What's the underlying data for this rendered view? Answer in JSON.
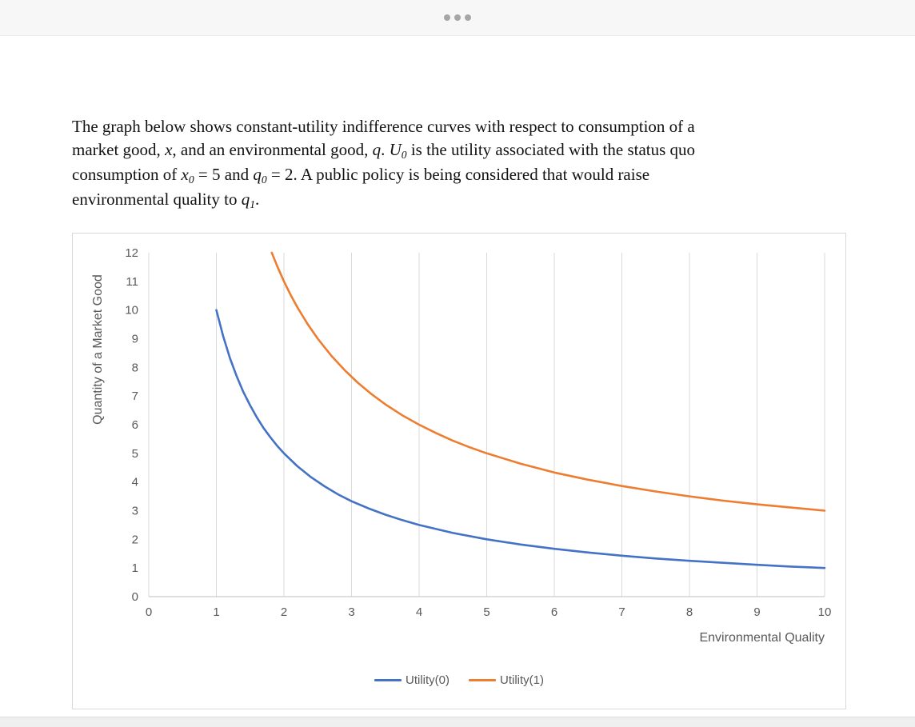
{
  "paragraph": {
    "segments": [
      {
        "t": "The graph below shows constant-utility indifference curves with respect to consumption of a",
        "st": "n"
      },
      {
        "br": true
      },
      {
        "t": "market good, ",
        "st": "n"
      },
      {
        "t": "x",
        "st": "i"
      },
      {
        "t": ", and an environmental good, ",
        "st": "n"
      },
      {
        "t": "q",
        "st": "i"
      },
      {
        "t": ". ",
        "st": "n"
      },
      {
        "t": "U",
        "st": "i"
      },
      {
        "t": "0",
        "st": "s"
      },
      {
        "t": " is the utility associated with the status quo",
        "st": "n"
      },
      {
        "br": true
      },
      {
        "t": "consumption of ",
        "st": "n"
      },
      {
        "t": "x",
        "st": "i"
      },
      {
        "t": "0",
        "st": "s"
      },
      {
        "t": " = 5 and ",
        "st": "n"
      },
      {
        "t": "q",
        "st": "i"
      },
      {
        "t": "0",
        "st": "s"
      },
      {
        "t": " = 2. A public policy is being considered that would raise",
        "st": "n"
      },
      {
        "br": true
      },
      {
        "t": "environmental quality to ",
        "st": "n"
      },
      {
        "t": "q",
        "st": "i"
      },
      {
        "t": "1",
        "st": "s"
      },
      {
        "t": ".",
        "st": "n"
      }
    ]
  },
  "chart_data": {
    "type": "line",
    "title": "",
    "xlabel": "Environmental Quality",
    "ylabel": "Quantity of a Market Good",
    "xlim": [
      0,
      10
    ],
    "ylim": [
      0,
      12
    ],
    "x_ticks": [
      0,
      1,
      2,
      3,
      4,
      5,
      6,
      7,
      8,
      9,
      10
    ],
    "y_ticks": [
      0,
      1,
      2,
      3,
      4,
      5,
      6,
      7,
      8,
      9,
      10,
      11,
      12
    ],
    "grid": "vertical-only",
    "grid_color": "#d9d9d9",
    "axis_color": "#bfbfbf",
    "tick_color": "#595959",
    "legend_position": "bottom",
    "series": [
      {
        "name": "Utility(0)",
        "color": "#4472c4",
        "points": [
          [
            1,
            10
          ],
          [
            1.1,
            9.09
          ],
          [
            1.2,
            8.33
          ],
          [
            1.3,
            7.69
          ],
          [
            1.4,
            7.14
          ],
          [
            1.5,
            6.67
          ],
          [
            1.6,
            6.25
          ],
          [
            1.7,
            5.88
          ],
          [
            1.8,
            5.56
          ],
          [
            1.9,
            5.26
          ],
          [
            2,
            5
          ],
          [
            2.2,
            4.55
          ],
          [
            2.4,
            4.17
          ],
          [
            2.6,
            3.85
          ],
          [
            2.8,
            3.57
          ],
          [
            3,
            3.33
          ],
          [
            3.25,
            3.08
          ],
          [
            3.5,
            2.86
          ],
          [
            3.75,
            2.67
          ],
          [
            4,
            2.5
          ],
          [
            4.5,
            2.22
          ],
          [
            5,
            2
          ],
          [
            5.5,
            1.82
          ],
          [
            6,
            1.67
          ],
          [
            6.5,
            1.54
          ],
          [
            7,
            1.43
          ],
          [
            7.5,
            1.33
          ],
          [
            8,
            1.25
          ],
          [
            8.5,
            1.18
          ],
          [
            9,
            1.11
          ],
          [
            9.5,
            1.05
          ],
          [
            10,
            1
          ]
        ]
      },
      {
        "name": "Utility(1)",
        "color": "#ed7d31",
        "points": [
          [
            1.82,
            12
          ],
          [
            1.9,
            11.53
          ],
          [
            2,
            11
          ],
          [
            2.1,
            10.52
          ],
          [
            2.2,
            10.09
          ],
          [
            2.35,
            9.51
          ],
          [
            2.5,
            9
          ],
          [
            2.7,
            8.41
          ],
          [
            2.9,
            7.9
          ],
          [
            3.1,
            7.45
          ],
          [
            3.3,
            7.06
          ],
          [
            3.5,
            6.71
          ],
          [
            3.75,
            6.33
          ],
          [
            4,
            6
          ],
          [
            4.25,
            5.71
          ],
          [
            4.5,
            5.44
          ],
          [
            4.75,
            5.21
          ],
          [
            5,
            5
          ],
          [
            5.5,
            4.64
          ],
          [
            6,
            4.33
          ],
          [
            6.5,
            4.08
          ],
          [
            7,
            3.86
          ],
          [
            7.5,
            3.67
          ],
          [
            8,
            3.5
          ],
          [
            8.5,
            3.35
          ],
          [
            9,
            3.22
          ],
          [
            9.5,
            3.11
          ],
          [
            10,
            3
          ]
        ]
      }
    ]
  }
}
